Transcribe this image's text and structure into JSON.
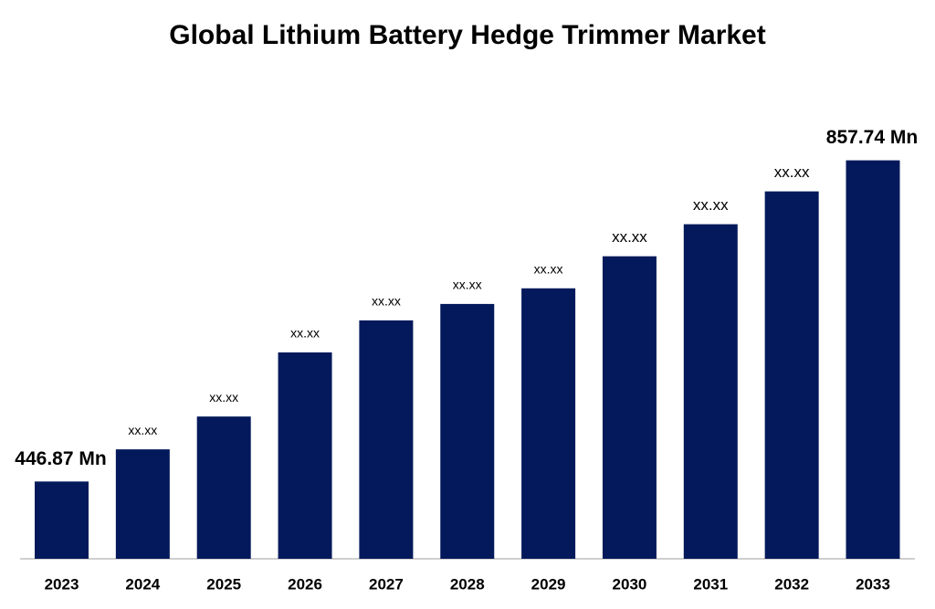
{
  "chart_data": {
    "type": "bar",
    "title": "Global Lithium Battery Hedge Trimmer Market",
    "categories": [
      "2023",
      "2024",
      "2025",
      "2026",
      "2027",
      "2028",
      "2029",
      "2030",
      "2031",
      "2032",
      "2033"
    ],
    "values": [
      446.87,
      488,
      530,
      612,
      653,
      674,
      694,
      735,
      776,
      818,
      857.74
    ],
    "value_labels": [
      "446.87 Mn",
      "xx.xx",
      "xx.xx",
      "xx.xx",
      "xx.xx",
      "xx.xx",
      "xx.xx",
      "xx.xx",
      "xx.xx",
      "xx.xx",
      "857.74 Mn"
    ],
    "color": "#03195b",
    "ylim": [
      348,
      911
    ]
  }
}
